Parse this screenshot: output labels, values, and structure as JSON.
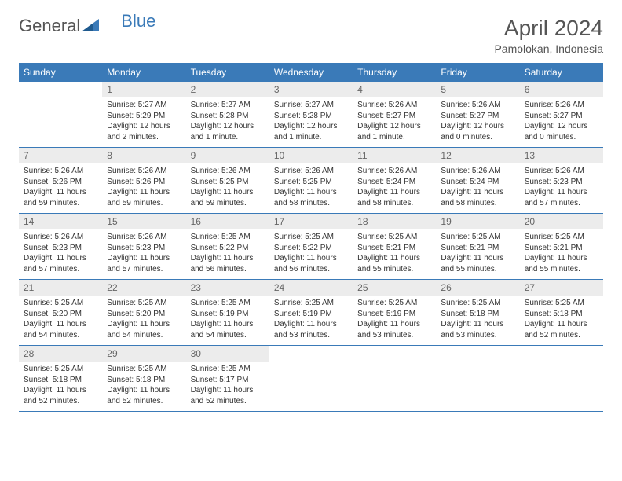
{
  "logo": {
    "text1": "General",
    "text2": "Blue"
  },
  "title": "April 2024",
  "location": "Pamolokan, Indonesia",
  "colors": {
    "header_bg": "#3a7ab8",
    "header_text": "#ffffff",
    "daynum_bg": "#ececec",
    "daynum_text": "#666666",
    "border": "#3a7ab8",
    "body_text": "#333333"
  },
  "dayNames": [
    "Sunday",
    "Monday",
    "Tuesday",
    "Wednesday",
    "Thursday",
    "Friday",
    "Saturday"
  ],
  "weeks": [
    [
      {
        "n": "",
        "sunrise": "",
        "sunset": "",
        "daylight": ""
      },
      {
        "n": "1",
        "sunrise": "Sunrise: 5:27 AM",
        "sunset": "Sunset: 5:29 PM",
        "daylight": "Daylight: 12 hours and 2 minutes."
      },
      {
        "n": "2",
        "sunrise": "Sunrise: 5:27 AM",
        "sunset": "Sunset: 5:28 PM",
        "daylight": "Daylight: 12 hours and 1 minute."
      },
      {
        "n": "3",
        "sunrise": "Sunrise: 5:27 AM",
        "sunset": "Sunset: 5:28 PM",
        "daylight": "Daylight: 12 hours and 1 minute."
      },
      {
        "n": "4",
        "sunrise": "Sunrise: 5:26 AM",
        "sunset": "Sunset: 5:27 PM",
        "daylight": "Daylight: 12 hours and 1 minute."
      },
      {
        "n": "5",
        "sunrise": "Sunrise: 5:26 AM",
        "sunset": "Sunset: 5:27 PM",
        "daylight": "Daylight: 12 hours and 0 minutes."
      },
      {
        "n": "6",
        "sunrise": "Sunrise: 5:26 AM",
        "sunset": "Sunset: 5:27 PM",
        "daylight": "Daylight: 12 hours and 0 minutes."
      }
    ],
    [
      {
        "n": "7",
        "sunrise": "Sunrise: 5:26 AM",
        "sunset": "Sunset: 5:26 PM",
        "daylight": "Daylight: 11 hours and 59 minutes."
      },
      {
        "n": "8",
        "sunrise": "Sunrise: 5:26 AM",
        "sunset": "Sunset: 5:26 PM",
        "daylight": "Daylight: 11 hours and 59 minutes."
      },
      {
        "n": "9",
        "sunrise": "Sunrise: 5:26 AM",
        "sunset": "Sunset: 5:25 PM",
        "daylight": "Daylight: 11 hours and 59 minutes."
      },
      {
        "n": "10",
        "sunrise": "Sunrise: 5:26 AM",
        "sunset": "Sunset: 5:25 PM",
        "daylight": "Daylight: 11 hours and 58 minutes."
      },
      {
        "n": "11",
        "sunrise": "Sunrise: 5:26 AM",
        "sunset": "Sunset: 5:24 PM",
        "daylight": "Daylight: 11 hours and 58 minutes."
      },
      {
        "n": "12",
        "sunrise": "Sunrise: 5:26 AM",
        "sunset": "Sunset: 5:24 PM",
        "daylight": "Daylight: 11 hours and 58 minutes."
      },
      {
        "n": "13",
        "sunrise": "Sunrise: 5:26 AM",
        "sunset": "Sunset: 5:23 PM",
        "daylight": "Daylight: 11 hours and 57 minutes."
      }
    ],
    [
      {
        "n": "14",
        "sunrise": "Sunrise: 5:26 AM",
        "sunset": "Sunset: 5:23 PM",
        "daylight": "Daylight: 11 hours and 57 minutes."
      },
      {
        "n": "15",
        "sunrise": "Sunrise: 5:26 AM",
        "sunset": "Sunset: 5:23 PM",
        "daylight": "Daylight: 11 hours and 57 minutes."
      },
      {
        "n": "16",
        "sunrise": "Sunrise: 5:25 AM",
        "sunset": "Sunset: 5:22 PM",
        "daylight": "Daylight: 11 hours and 56 minutes."
      },
      {
        "n": "17",
        "sunrise": "Sunrise: 5:25 AM",
        "sunset": "Sunset: 5:22 PM",
        "daylight": "Daylight: 11 hours and 56 minutes."
      },
      {
        "n": "18",
        "sunrise": "Sunrise: 5:25 AM",
        "sunset": "Sunset: 5:21 PM",
        "daylight": "Daylight: 11 hours and 55 minutes."
      },
      {
        "n": "19",
        "sunrise": "Sunrise: 5:25 AM",
        "sunset": "Sunset: 5:21 PM",
        "daylight": "Daylight: 11 hours and 55 minutes."
      },
      {
        "n": "20",
        "sunrise": "Sunrise: 5:25 AM",
        "sunset": "Sunset: 5:21 PM",
        "daylight": "Daylight: 11 hours and 55 minutes."
      }
    ],
    [
      {
        "n": "21",
        "sunrise": "Sunrise: 5:25 AM",
        "sunset": "Sunset: 5:20 PM",
        "daylight": "Daylight: 11 hours and 54 minutes."
      },
      {
        "n": "22",
        "sunrise": "Sunrise: 5:25 AM",
        "sunset": "Sunset: 5:20 PM",
        "daylight": "Daylight: 11 hours and 54 minutes."
      },
      {
        "n": "23",
        "sunrise": "Sunrise: 5:25 AM",
        "sunset": "Sunset: 5:19 PM",
        "daylight": "Daylight: 11 hours and 54 minutes."
      },
      {
        "n": "24",
        "sunrise": "Sunrise: 5:25 AM",
        "sunset": "Sunset: 5:19 PM",
        "daylight": "Daylight: 11 hours and 53 minutes."
      },
      {
        "n": "25",
        "sunrise": "Sunrise: 5:25 AM",
        "sunset": "Sunset: 5:19 PM",
        "daylight": "Daylight: 11 hours and 53 minutes."
      },
      {
        "n": "26",
        "sunrise": "Sunrise: 5:25 AM",
        "sunset": "Sunset: 5:18 PM",
        "daylight": "Daylight: 11 hours and 53 minutes."
      },
      {
        "n": "27",
        "sunrise": "Sunrise: 5:25 AM",
        "sunset": "Sunset: 5:18 PM",
        "daylight": "Daylight: 11 hours and 52 minutes."
      }
    ],
    [
      {
        "n": "28",
        "sunrise": "Sunrise: 5:25 AM",
        "sunset": "Sunset: 5:18 PM",
        "daylight": "Daylight: 11 hours and 52 minutes."
      },
      {
        "n": "29",
        "sunrise": "Sunrise: 5:25 AM",
        "sunset": "Sunset: 5:18 PM",
        "daylight": "Daylight: 11 hours and 52 minutes."
      },
      {
        "n": "30",
        "sunrise": "Sunrise: 5:25 AM",
        "sunset": "Sunset: 5:17 PM",
        "daylight": "Daylight: 11 hours and 52 minutes."
      },
      {
        "n": "",
        "sunrise": "",
        "sunset": "",
        "daylight": ""
      },
      {
        "n": "",
        "sunrise": "",
        "sunset": "",
        "daylight": ""
      },
      {
        "n": "",
        "sunrise": "",
        "sunset": "",
        "daylight": ""
      },
      {
        "n": "",
        "sunrise": "",
        "sunset": "",
        "daylight": ""
      }
    ]
  ]
}
